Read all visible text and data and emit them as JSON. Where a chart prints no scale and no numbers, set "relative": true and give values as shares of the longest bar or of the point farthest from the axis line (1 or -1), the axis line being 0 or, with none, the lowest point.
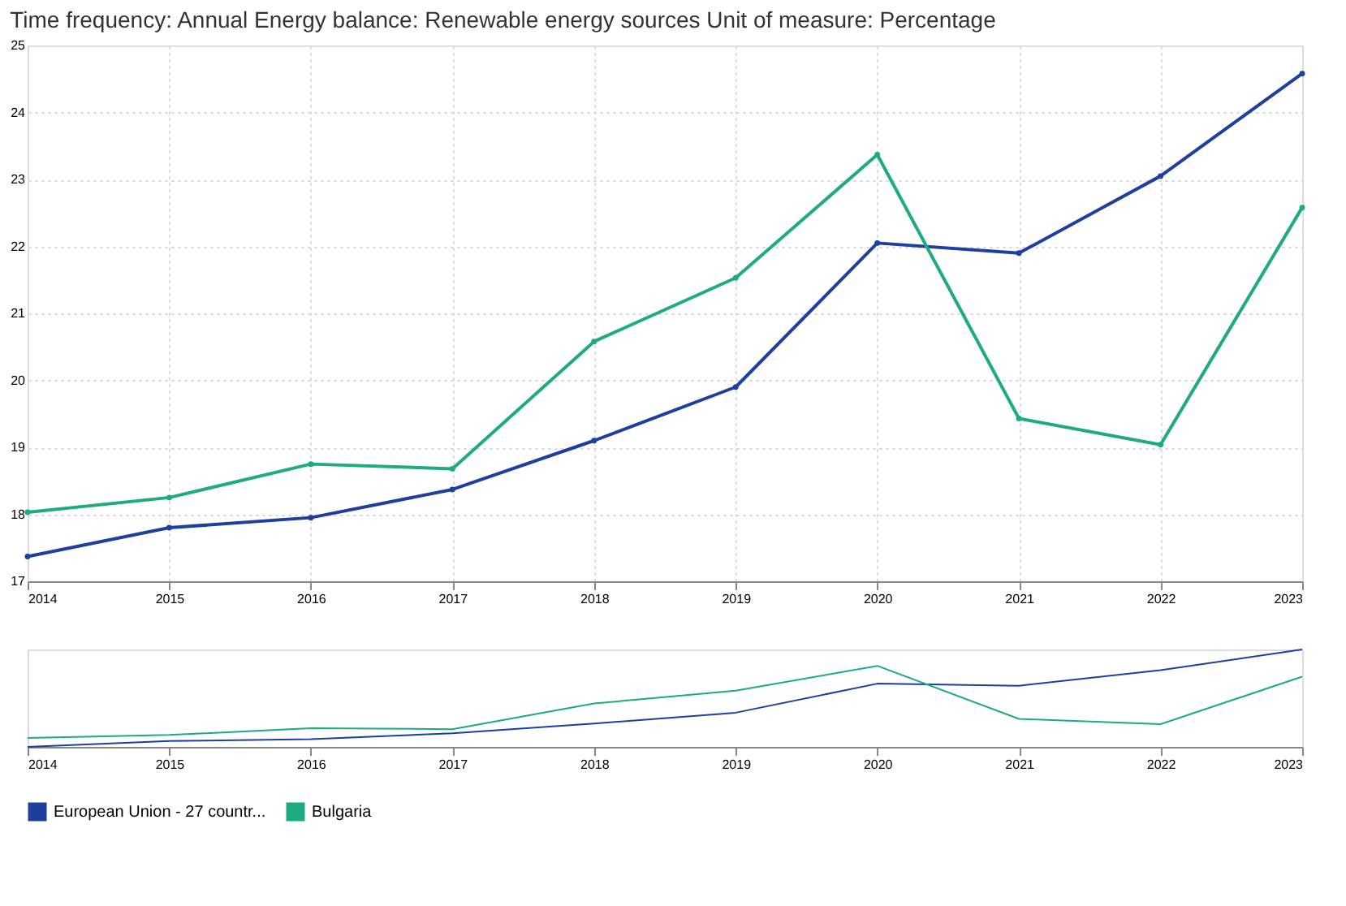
{
  "chart_data": [
    {
      "type": "line",
      "title": "Time frequency: Annual  Energy balance: Renewable energy sources  Unit of measure: Percentage",
      "x": [
        2014,
        2015,
        2016,
        2017,
        2018,
        2019,
        2020,
        2021,
        2022,
        2023
      ],
      "series": [
        {
          "name": "European Union - 27 countr...",
          "color": "#1f3f9f",
          "values": [
            17.37,
            17.8,
            17.95,
            18.37,
            19.1,
            19.9,
            22.05,
            21.9,
            23.05,
            24.58
          ]
        },
        {
          "name": "Bulgaria",
          "color": "#1dab7f",
          "values": [
            18.03,
            18.25,
            18.75,
            18.68,
            20.58,
            21.53,
            23.37,
            19.43,
            19.04,
            22.58
          ]
        }
      ],
      "xlim": [
        2014,
        2023
      ],
      "xticks": [
        2014,
        2015,
        2016,
        2017,
        2018,
        2019,
        2020,
        2021,
        2022,
        2023
      ],
      "ylim": [
        17,
        25
      ],
      "yticks": [
        17,
        18,
        19,
        20,
        21,
        22,
        23,
        24,
        25
      ],
      "grid": true,
      "marker": "circle",
      "line_style": "solid",
      "legend": "bottom"
    },
    {
      "type": "line",
      "x": [
        2014,
        2015,
        2016,
        2017,
        2018,
        2019,
        2020,
        2021,
        2022,
        2023
      ],
      "series": [
        {
          "name": "European Union - 27 countr...",
          "color": "#1f3f9f",
          "values": [
            0,
            0.06,
            0.08,
            0.139,
            0.24,
            0.351,
            0.649,
            0.628,
            0.787,
            1
          ]
        },
        {
          "name": "Bulgaria",
          "color": "#1dab7f",
          "values": [
            0.092,
            0.122,
            0.191,
            0.182,
            0.445,
            0.577,
            0.832,
            0.287,
            0.233,
            0.721
          ]
        }
      ],
      "xlim": [
        2014,
        2023
      ],
      "xticks": [
        2014,
        2015,
        2016,
        2017,
        2018,
        2019,
        2020,
        2021,
        2022,
        2023
      ],
      "relative": true,
      "tick_labels": "x",
      "grid": false,
      "marker": "none",
      "line_style": "solid",
      "legend": "bottom"
    }
  ]
}
